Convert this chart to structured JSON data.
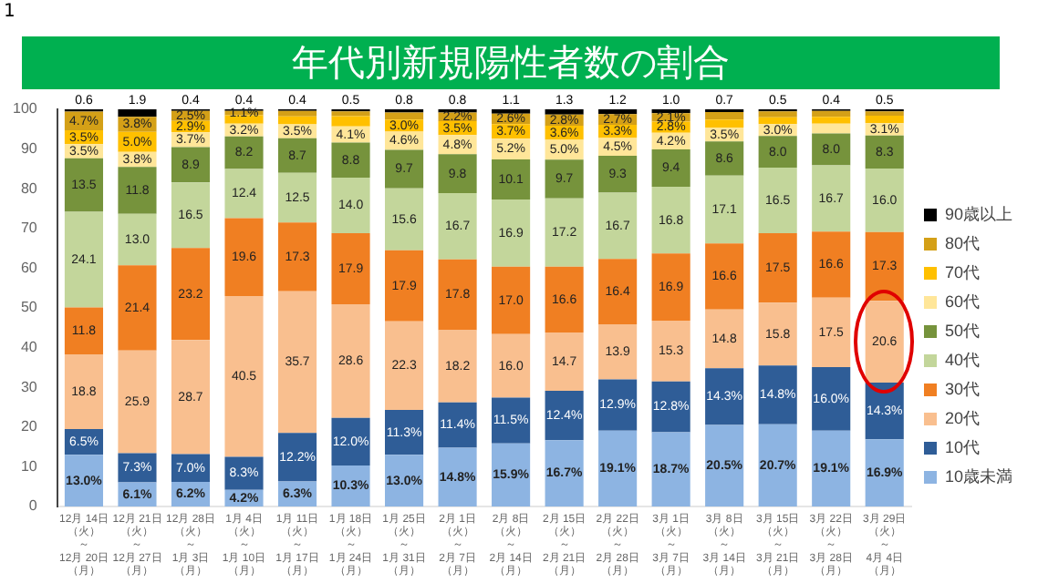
{
  "chart_data": {
    "type": "bar",
    "stacked": true,
    "title": "年代別新規陽性者数の割合",
    "annotations": [
      "1"
    ],
    "categories": [
      "12月 14日（火）～12月 20日（月）",
      "12月 21日（火）～12月 27日（月）",
      "12月 28日（火）～1月 3日（月）",
      "1月 4日（火）～1月 10日（月）",
      "1月 11日（火）～1月 17日（月）",
      "1月 18日（火）～1月 24日（月）",
      "1月 25日（火）～1月 31日（月）",
      "2月 1日（火）～2月 7日（月）",
      "2月 8日（火）～2月 14日（月）",
      "2月 15日（火）～2月 21日（月）",
      "2月 22日（火）～2月 28日（月）",
      "3月 1日（火）～3月 7日（月）",
      "3月 8日（火）～3月 14日（月）",
      "3月 15日（火）～3月 21日（月）",
      "3月 22日（火）～3月 28日（月）",
      "3月 29日（火）～4月 4日（月）"
    ],
    "ylim": [
      0,
      100
    ],
    "yticks": [
      0,
      10,
      20,
      30,
      40,
      50,
      60,
      70,
      80,
      90,
      100
    ],
    "grid": false,
    "legend": "right",
    "series": [
      {
        "name": "10歳未満",
        "color": "#8db4e2",
        "values": [
          13.0,
          6.1,
          6.2,
          4.2,
          6.3,
          10.3,
          13.0,
          14.8,
          15.9,
          16.7,
          19.1,
          18.7,
          20.5,
          20.7,
          19.1,
          16.9
        ],
        "value_labels": [
          "13.0%",
          "6.1%",
          "6.2%",
          "4.2%",
          "6.3%",
          "10.3%",
          "13.0%",
          "14.8%",
          "15.9%",
          "16.7%",
          "19.1%",
          "18.7%",
          "20.5%",
          "20.7%",
          "19.1%",
          "16.9%"
        ]
      },
      {
        "name": "10代",
        "color": "#2f5d97",
        "values": [
          6.5,
          7.3,
          7.0,
          8.3,
          12.2,
          12.0,
          11.3,
          11.4,
          11.5,
          12.4,
          12.9,
          12.8,
          14.3,
          14.8,
          16.0,
          14.3
        ],
        "value_labels": [
          "6.5%",
          "7.3%",
          "7.0%",
          "8.3%",
          "12.2%",
          "12.0%",
          "11.3%",
          "11.4%",
          "11.5%",
          "12.4%",
          "12.9%",
          "12.8%",
          "14.3%",
          "14.8%",
          "16.0%",
          "14.3%"
        ]
      },
      {
        "name": "20代",
        "color": "#f9bf8f",
        "values": [
          18.8,
          25.9,
          28.7,
          40.5,
          35.7,
          28.6,
          22.3,
          18.2,
          16.0,
          14.7,
          13.9,
          15.3,
          14.8,
          15.8,
          17.5,
          20.6
        ],
        "value_labels": [
          "18.8",
          "25.9",
          "28.7",
          "40.5",
          "35.7",
          "28.6",
          "22.3",
          "18.2",
          "16.0",
          "14.7",
          "13.9",
          "15.3",
          "14.8",
          "15.8",
          "17.5",
          "20.6"
        ]
      },
      {
        "name": "30代",
        "color": "#f07f22",
        "values": [
          11.8,
          21.4,
          23.2,
          19.6,
          17.3,
          17.9,
          17.9,
          17.8,
          17.0,
          16.6,
          16.4,
          16.9,
          16.6,
          17.5,
          16.6,
          17.3
        ],
        "value_labels": [
          "11.8",
          "21.4",
          "23.2",
          "19.6",
          "17.3",
          "17.9",
          "17.9",
          "17.8",
          "17.0",
          "16.6",
          "16.4",
          "16.9",
          "16.6",
          "17.5",
          "16.6",
          "17.3"
        ]
      },
      {
        "name": "40代",
        "color": "#c3d69b",
        "values": [
          24.1,
          13.0,
          16.5,
          12.4,
          12.5,
          14.0,
          15.6,
          16.7,
          16.9,
          17.2,
          16.7,
          16.8,
          17.1,
          16.5,
          16.7,
          16.0
        ],
        "value_labels": [
          "24.1",
          "13.0",
          "16.5",
          "12.4",
          "12.5",
          "14.0",
          "15.6",
          "16.7",
          "16.9",
          "17.2",
          "16.7",
          "16.8",
          "17.1",
          "16.5",
          "16.7",
          "16.0"
        ]
      },
      {
        "name": "50代",
        "color": "#76933c",
        "values": [
          13.5,
          11.8,
          8.9,
          8.2,
          8.7,
          8.8,
          9.7,
          9.8,
          10.1,
          9.7,
          9.3,
          9.4,
          8.6,
          8.0,
          8.0,
          8.3
        ],
        "value_labels": [
          "13.5",
          "11.8",
          "8.9",
          "8.2",
          "8.7",
          "8.8",
          "9.7",
          "9.8",
          "10.1",
          "9.7",
          "9.3",
          "9.4",
          "8.6",
          "8.0",
          "8.0",
          "8.3"
        ]
      },
      {
        "name": "60代",
        "color": "#ffe699",
        "values": [
          3.5,
          3.8,
          3.7,
          3.2,
          3.5,
          4.1,
          4.6,
          4.8,
          5.2,
          5.0,
          4.5,
          4.2,
          3.5,
          3.0,
          2.5,
          3.1
        ],
        "value_labels": [
          "3.5%",
          "3.8%",
          "3.7%",
          "3.2%",
          "3.5%",
          "4.1%",
          "4.6%",
          "4.8%",
          "5.2%",
          "5.0%",
          "4.5%",
          "4.2%",
          "3.5%",
          "3.0%",
          null,
          "3.1%"
        ]
      },
      {
        "name": "70代",
        "color": "#ffc000",
        "values": [
          3.5,
          5.0,
          2.9,
          2.1,
          2.0,
          2.6,
          3.0,
          3.5,
          3.7,
          3.6,
          3.3,
          2.8,
          2.0,
          1.7,
          1.7,
          1.9
        ],
        "value_labels": [
          "3.5%",
          "5.0%",
          "2.9%",
          null,
          null,
          null,
          "3.0%",
          "3.5%",
          "3.7%",
          "3.6%",
          "3.3%",
          "2.8%",
          null,
          null,
          null,
          null
        ]
      },
      {
        "name": "80代",
        "color": "#d4a017",
        "values": [
          4.7,
          3.8,
          2.5,
          1.1,
          1.4,
          1.2,
          1.8,
          2.2,
          2.6,
          2.8,
          2.7,
          2.1,
          1.9,
          1.5,
          1.5,
          1.1
        ],
        "value_labels": [
          "4.7%",
          "3.8%",
          "2.5%",
          "1.1%",
          null,
          null,
          null,
          "2.2%",
          "2.6%",
          "2.8%",
          "2.7%",
          "2.1%",
          null,
          null,
          null,
          null
        ]
      },
      {
        "name": "90歳以上",
        "color": "#000000",
        "values": [
          0.6,
          1.9,
          0.4,
          0.4,
          0.4,
          0.5,
          0.8,
          0.8,
          1.1,
          1.3,
          1.2,
          1.0,
          0.7,
          0.5,
          0.4,
          0.5
        ],
        "value_labels": [
          "0.6",
          "1.9",
          "0.4",
          "0.4",
          "0.4",
          "0.5",
          "0.8",
          "0.8",
          "1.1",
          "1.3",
          "1.2",
          "1.0",
          "0.7",
          "0.5",
          "0.4",
          "0.5"
        ]
      }
    ]
  }
}
